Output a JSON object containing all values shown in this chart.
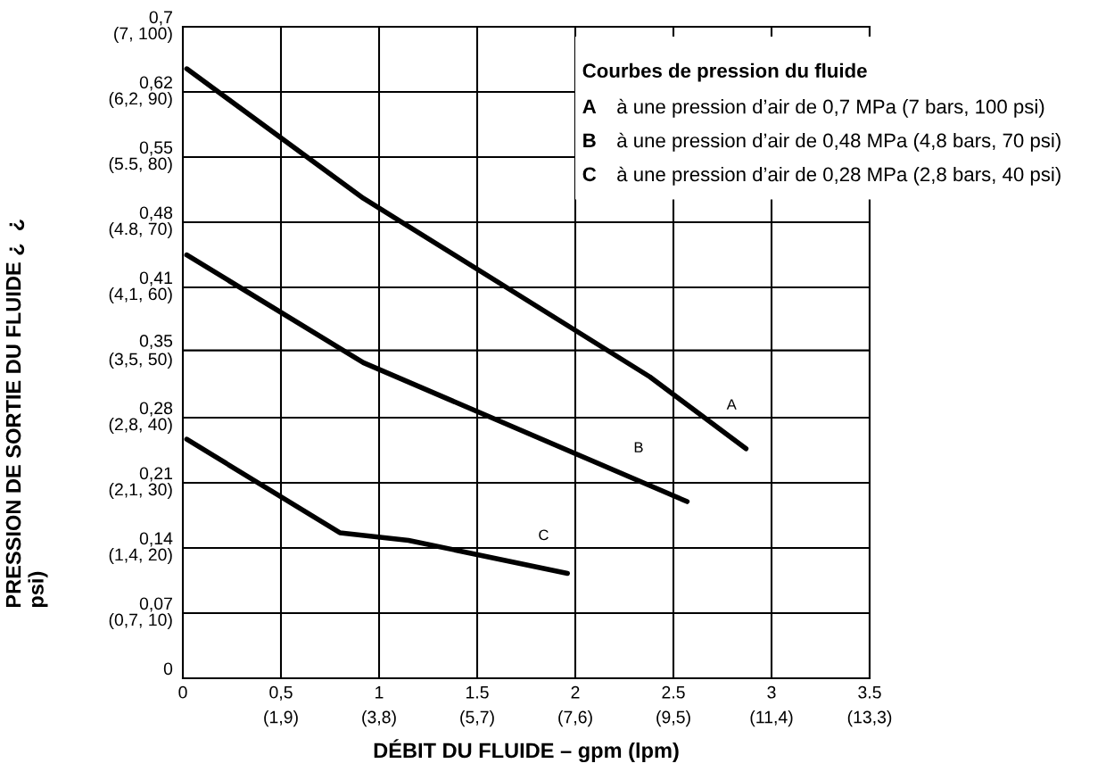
{
  "chart_data": {
    "type": "line",
    "xlabel": "DÉBIT DU FLUIDE – gpm (lpm)",
    "ylabel": "PRESSION DE SORTIE DU FLUIDE ¿  ¿\npsi)",
    "legend_title": "Courbes de pression du fluide",
    "annotations": [
      "A à une pression d’air de 0,7 MPa (7 bars, 100 psi)",
      "B à une pression d’air de 0,48 MPa (4,8 bars, 70 psi)",
      "C à une pression d’air de 0,28 MPa (2,8 bars, 40 psi)"
    ],
    "series": [
      {
        "name": "A",
        "color": "#000000",
        "x": [
          0.02,
          0.92,
          2.38,
          2.87
        ],
        "values": [
          0.645,
          0.508,
          0.319,
          0.243
        ]
      },
      {
        "name": "B",
        "color": "#000000",
        "x": [
          0.02,
          0.92,
          2.57
        ],
        "values": [
          0.448,
          0.334,
          0.187
        ]
      },
      {
        "name": "C",
        "color": "#000000",
        "x": [
          0.02,
          0.8,
          1.15,
          1.96
        ],
        "values": [
          0.253,
          0.154,
          0.146,
          0.111
        ]
      }
    ],
    "xlim": [
      0,
      3.5
    ],
    "xticks": [
      0,
      {
        "value": 0.5,
        "label": "0,5"
      },
      1,
      1.5,
      2,
      2.5,
      3,
      3.5
    ],
    "x2lim": [
      0,
      13.3
    ],
    "x2ticks": [
      {
        "value": 1.9,
        "label": "(1,9)"
      },
      {
        "value": 3.8,
        "label": "(3,8)"
      },
      {
        "value": 5.7,
        "label": "(5,7)"
      },
      {
        "value": 7.6,
        "label": "(7,6)"
      },
      {
        "value": 9.5,
        "label": "(9,5)"
      },
      {
        "value": 11.4,
        "label": "(11,4)"
      },
      {
        "value": 13.3,
        "label": "(13,3)"
      }
    ],
    "ylim": [
      0,
      0.6895
    ],
    "yticks": [
      0,
      {
        "value": 0.0689,
        "label": "0,07"
      },
      {
        "value": 0.1379,
        "label": "0,14"
      },
      {
        "value": 0.2068,
        "label": "0,21"
      },
      {
        "value": 0.2758,
        "label": "0,28"
      },
      {
        "value": 0.347,
        "label": "0,35"
      },
      {
        "value": 0.4137,
        "label": "0,41"
      },
      {
        "value": 0.4826,
        "label": "0,48"
      },
      {
        "value": 0.5516,
        "label": "0,55"
      },
      {
        "value": 0.6205,
        "label": "0,62"
      },
      {
        "value": 0.6895,
        "label": "0,7"
      }
    ],
    "y2_categories": [
      "(7, 100)",
      "(6,2, 90)",
      "(5.5, 80)",
      "(4.8, 70)",
      "(4,1, 60)",
      "(3,5, 50)",
      "(2,8, 40)",
      "(2,1, 30)",
      "(1,4, 20)",
      "(0,7, 10)",
      null
    ],
    "grid": true,
    "line_style": "solid",
    "marker": "none"
  }
}
